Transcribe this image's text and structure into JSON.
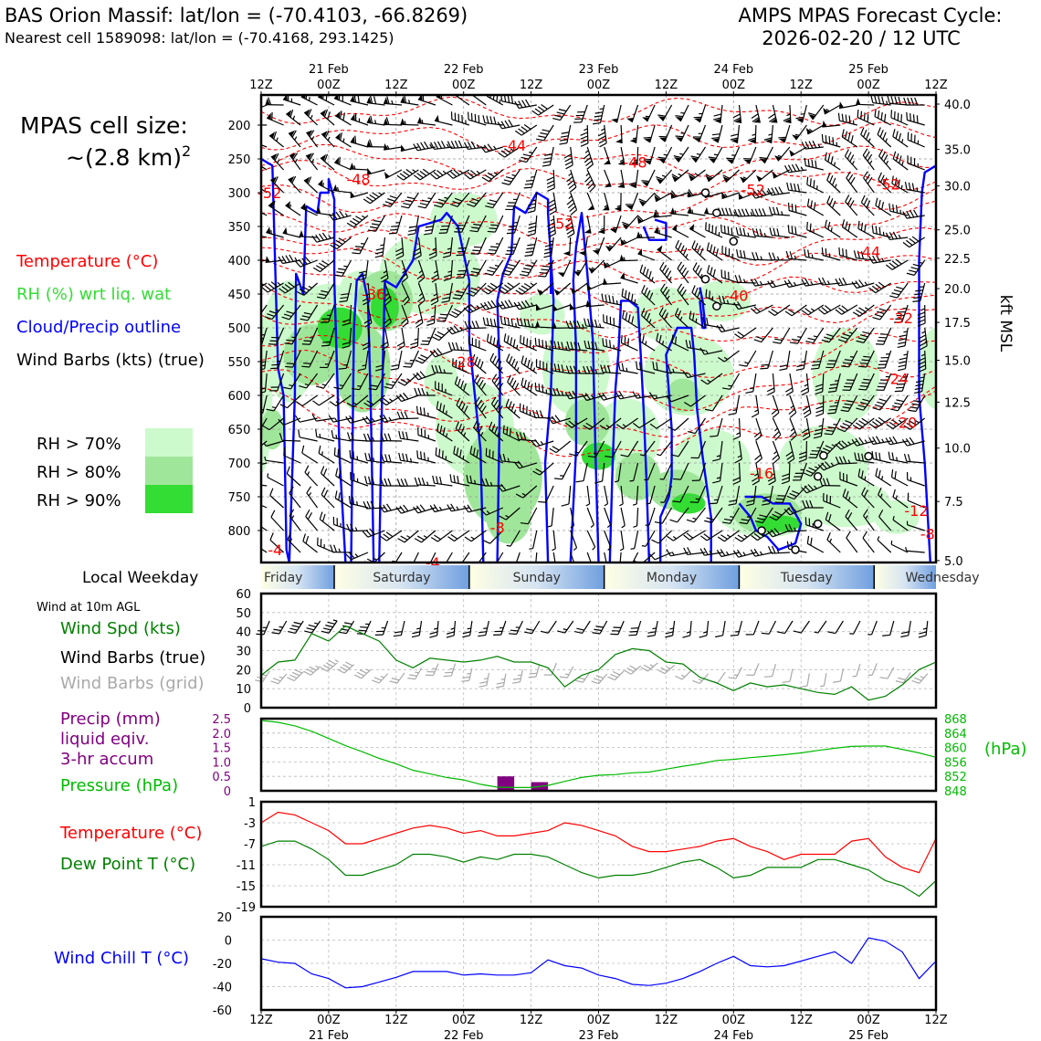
{
  "header": {
    "title_left": "BAS Orion Massif: lat/lon = (-70.4103, -66.8269)",
    "subtitle_left": "Nearest cell 1589098: lat/lon = (-70.4168, 293.1425)",
    "title_right_1": "AMPS MPAS Forecast Cycle:",
    "title_right_2": "2026-02-20 / 12 UTC"
  },
  "time_axis": {
    "ticks": [
      "12Z",
      "00Z",
      "12Z",
      "00Z",
      "12Z",
      "00Z",
      "12Z",
      "00Z",
      "12Z",
      "00Z",
      "12Z"
    ],
    "dates": [
      "21 Feb",
      "22 Feb",
      "23 Feb",
      "24 Feb",
      "25 Feb"
    ]
  },
  "cell_size": {
    "line1": "MPAS cell size:",
    "line2": "~(2.8 km)",
    "sup": "2"
  },
  "legend": {
    "temperature": "Temperature (°C)",
    "rh": "RH (%) wrt liq. wat",
    "cloud": "Cloud/Precip outline",
    "barbs": "Wind Barbs (kts) (true)",
    "rh70": "RH > 70%",
    "rh80": "RH > 80%",
    "rh90": "RH > 90%"
  },
  "colors": {
    "rh70": "#ccfacc",
    "rh80": "#a0e69a",
    "rh90": "#33dd33",
    "temp": "#ff0000",
    "cloud": "#0000ff",
    "rh_label": "#33dd33",
    "wind": "#008000",
    "grid_barb": "#a9a9a9",
    "precip": "#800080",
    "pressure": "#00bb00",
    "dew": "#008000",
    "chill": "#0000ff"
  },
  "weekday": {
    "label": "Local Weekday",
    "days": [
      "Friday",
      "Saturday",
      "Sunday",
      "Monday",
      "Tuesday",
      "Wednesday"
    ]
  },
  "panels": {
    "wind_title": "Wind at 10m AGL",
    "wind_spd": "Wind Spd (kts)",
    "wind_barbs_true": "Wind Barbs (true)",
    "wind_barbs_grid": "Wind Barbs (grid)",
    "precip_1": "Precip (mm)",
    "precip_2": "liquid eqiv.",
    "precip_3": "3-hr accum",
    "pressure": "Pressure (hPa)",
    "hpa": "(hPa)",
    "temperature": "Temperature (°C)",
    "dewpoint": "Dew Point T (°C)",
    "windchill": "Wind Chill T (°C)"
  },
  "chart_data": [
    {
      "type": "heatmap",
      "name": "time-height cross section",
      "x": "forecast time (hours, 0 = 12Z 20 Feb)",
      "xlim": [
        0,
        120
      ],
      "ylabel_left": "Pressure (hPa)",
      "ylabel_right": "kft MSL",
      "yticks_left": [
        "200",
        "250",
        "300",
        "350",
        "400",
        "450",
        "500",
        "550",
        "600",
        "650",
        "700",
        "750",
        "800"
      ],
      "yticks_right": [
        "40.0",
        "35.0",
        "30.0",
        "25.0",
        "22.5",
        "20.0",
        "17.5",
        "15.0",
        "12.5",
        "10.0",
        "7.5",
        "5.0"
      ],
      "temp_contour_labels": [
        {
          "t": 1.5,
          "p": 300,
          "label": "-52"
        },
        {
          "t": 17.3,
          "p": 280,
          "label": "-48"
        },
        {
          "t": 45,
          "p": 230,
          "label": "-44"
        },
        {
          "t": 66.5,
          "p": 255,
          "label": "-48"
        },
        {
          "t": 53.5,
          "p": 345,
          "label": "-52"
        },
        {
          "t": 87.5,
          "p": 295,
          "label": "-52"
        },
        {
          "t": 111.5,
          "p": 287,
          "label": "-52"
        },
        {
          "t": 108,
          "p": 387,
          "label": "-44"
        },
        {
          "t": 84.5,
          "p": 452,
          "label": "-40"
        },
        {
          "t": 113.8,
          "p": 485,
          "label": "-32"
        },
        {
          "t": 113,
          "p": 575,
          "label": "-24"
        },
        {
          "t": 114.5,
          "p": 640,
          "label": "-20"
        },
        {
          "t": 20,
          "p": 450,
          "label": "-36"
        },
        {
          "t": 36,
          "p": 550,
          "label": "-28"
        },
        {
          "t": 89,
          "p": 715,
          "label": "-16"
        },
        {
          "t": 116.5,
          "p": 770,
          "label": "-12"
        },
        {
          "t": 42,
          "p": 795,
          "label": "-8"
        },
        {
          "t": 118.5,
          "p": 805,
          "label": "-8"
        },
        {
          "t": 2.5,
          "p": 830,
          "label": "-4"
        },
        {
          "t": 30.5,
          "p": 850,
          "label": "-4"
        }
      ]
    },
    {
      "type": "line",
      "name": "wind speed 10m",
      "ylabel": "Wind Spd (kts)",
      "ylim": [
        0,
        60
      ],
      "yticks": [
        0,
        10,
        20,
        30,
        40,
        50,
        60
      ],
      "x": [
        0,
        3,
        6,
        9,
        12,
        15,
        18,
        21,
        24,
        27,
        30,
        33,
        36,
        39,
        42,
        45,
        48,
        51,
        54,
        57,
        60,
        63,
        66,
        69,
        72,
        75,
        78,
        81,
        84,
        87,
        90,
        93,
        96,
        99,
        102,
        105,
        108,
        111,
        114,
        117,
        120
      ],
      "values": [
        17,
        24,
        25,
        39,
        35,
        43,
        39,
        35,
        25,
        21,
        26,
        25,
        24,
        25,
        27,
        24,
        24,
        21,
        11,
        17,
        20,
        28,
        31,
        30,
        24,
        23,
        16,
        13,
        9,
        13,
        11,
        12,
        10,
        8,
        7,
        11,
        4,
        6,
        12,
        20,
        24
      ]
    },
    {
      "type": "line",
      "name": "precip and pressure",
      "ylabel": "Precip (mm)",
      "ylim": [
        0,
        2.5
      ],
      "yticks": [
        0,
        0.5,
        1.0,
        1.5,
        2.0,
        2.5
      ],
      "y2label": "Pressure (hPa)",
      "y2lim": [
        848,
        868
      ],
      "y2ticks": [
        848,
        852,
        856,
        860,
        864,
        868
      ],
      "x": [
        0,
        3,
        6,
        9,
        12,
        15,
        18,
        21,
        24,
        27,
        30,
        33,
        36,
        39,
        42,
        45,
        48,
        51,
        54,
        57,
        60,
        63,
        66,
        69,
        72,
        75,
        78,
        81,
        84,
        87,
        90,
        93,
        96,
        99,
        102,
        105,
        108,
        111,
        114,
        117,
        120
      ],
      "pressure": [
        867.5,
        867,
        866,
        864.5,
        862.5,
        860.5,
        858.8,
        857,
        855.5,
        853.7,
        852.7,
        851.7,
        851,
        849.8,
        849,
        848.9,
        848.9,
        849.5,
        850.6,
        851.7,
        852.3,
        852.5,
        853,
        853.2,
        854,
        854.8,
        855.5,
        856.4,
        856.7,
        857.2,
        857.6,
        858,
        858.5,
        859.2,
        859.8,
        860.3,
        860.4,
        860.4,
        859.5,
        858.5,
        857.3
      ],
      "precip_bars": [
        {
          "x": 43.5,
          "value": 0.5
        },
        {
          "x": 49.5,
          "value": 0.3
        }
      ]
    },
    {
      "type": "line",
      "name": "temperature and dew point",
      "ylim": [
        -19,
        1
      ],
      "yticks": [
        1,
        -3,
        -7,
        -11,
        -15,
        -19
      ],
      "x": [
        0,
        3,
        6,
        9,
        12,
        15,
        18,
        21,
        24,
        27,
        30,
        33,
        36,
        39,
        42,
        45,
        48,
        51,
        54,
        57,
        60,
        63,
        66,
        69,
        72,
        75,
        78,
        81,
        84,
        87,
        90,
        93,
        96,
        99,
        102,
        105,
        108,
        111,
        114,
        117,
        120
      ],
      "series": [
        {
          "name": "Temperature (°C)",
          "values": [
            -3,
            -1,
            -1.5,
            -3,
            -4.5,
            -7,
            -7,
            -6,
            -5,
            -4,
            -3.5,
            -4,
            -5,
            -4.5,
            -5.5,
            -5.5,
            -5,
            -4.5,
            -3,
            -3.5,
            -4.5,
            -5.5,
            -7.5,
            -8.5,
            -8.5,
            -8,
            -7.5,
            -6.5,
            -6,
            -7.5,
            -8.5,
            -10,
            -9,
            -9,
            -9,
            -6.5,
            -6,
            -9.5,
            -11.5,
            -12.5,
            -6
          ]
        },
        {
          "name": "Dew Point T (°C)",
          "values": [
            -7.5,
            -6.5,
            -6.5,
            -8,
            -10,
            -13,
            -13,
            -12,
            -11,
            -9,
            -9,
            -9.5,
            -10.5,
            -9.5,
            -10,
            -9,
            -9,
            -9.5,
            -11,
            -12.5,
            -13.5,
            -13,
            -13,
            -12.5,
            -11.5,
            -10.5,
            -10,
            -11.5,
            -13.5,
            -13,
            -11.5,
            -11.5,
            -11.5,
            -10,
            -10,
            -11,
            -12,
            -14,
            -15,
            -17,
            -14
          ]
        }
      ]
    },
    {
      "type": "line",
      "name": "wind chill",
      "ylabel": "Wind Chill T (°C)",
      "ylim": [
        -60,
        20
      ],
      "yticks": [
        20,
        0,
        -20,
        -40,
        -60
      ],
      "x": [
        0,
        3,
        6,
        9,
        12,
        15,
        18,
        21,
        24,
        27,
        30,
        33,
        36,
        39,
        42,
        45,
        48,
        51,
        54,
        57,
        60,
        63,
        66,
        69,
        72,
        75,
        78,
        81,
        84,
        87,
        90,
        93,
        96,
        99,
        102,
        105,
        108,
        111,
        114,
        117,
        120
      ],
      "values": [
        -16,
        -19,
        -20,
        -29,
        -33,
        -41,
        -40,
        -36,
        -32,
        -27,
        -27,
        -27,
        -30,
        -29,
        -30,
        -30,
        -28,
        -17,
        -22,
        -24,
        -30,
        -33,
        -38,
        -39,
        -37,
        -33,
        -27,
        -20,
        -14,
        -22,
        -23,
        -22,
        -18,
        -14,
        -10,
        -20,
        2,
        -1,
        -10,
        -33,
        -18
      ]
    }
  ]
}
